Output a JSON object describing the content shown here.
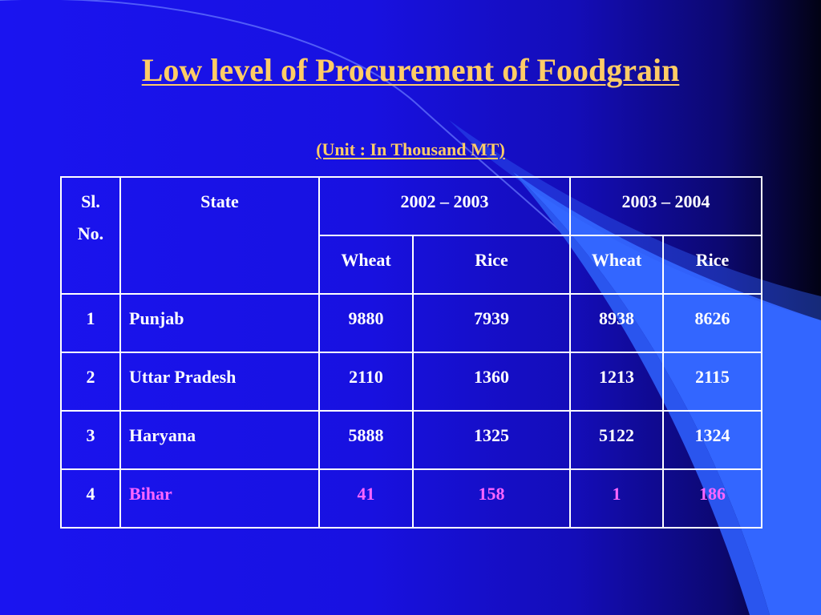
{
  "slide": {
    "title": "Low level of Procurement of Foodgrain",
    "subtitle": "(Unit : In Thousand MT)"
  },
  "colors": {
    "background": "#1a14f0",
    "title_text": "#ffcc66",
    "table_text": "#ffffff",
    "highlight_text": "#ff66ff",
    "decoration": "#3366ff"
  },
  "table": {
    "header": {
      "sl_no": "Sl.\nNo.",
      "state": "State",
      "period_1": "2002 – 2003",
      "period_2": "2003 – 2004",
      "sub": [
        "Wheat",
        "Rice",
        "Wheat",
        "Rice"
      ]
    },
    "rows": [
      {
        "sl": "1",
        "state": "Punjab",
        "values": [
          "9880",
          "7939",
          "8938",
          "8626"
        ]
      },
      {
        "sl": "2",
        "state": "Uttar Pradesh",
        "values": [
          "2110",
          "1360",
          "1213",
          "2115"
        ]
      },
      {
        "sl": "3",
        "state": "Haryana",
        "values": [
          "5888",
          "1325",
          "5122",
          "1324"
        ]
      },
      {
        "sl": "4",
        "state": "Bihar",
        "values": [
          "41",
          "158",
          "1",
          "186"
        ],
        "highlight": true
      }
    ]
  }
}
